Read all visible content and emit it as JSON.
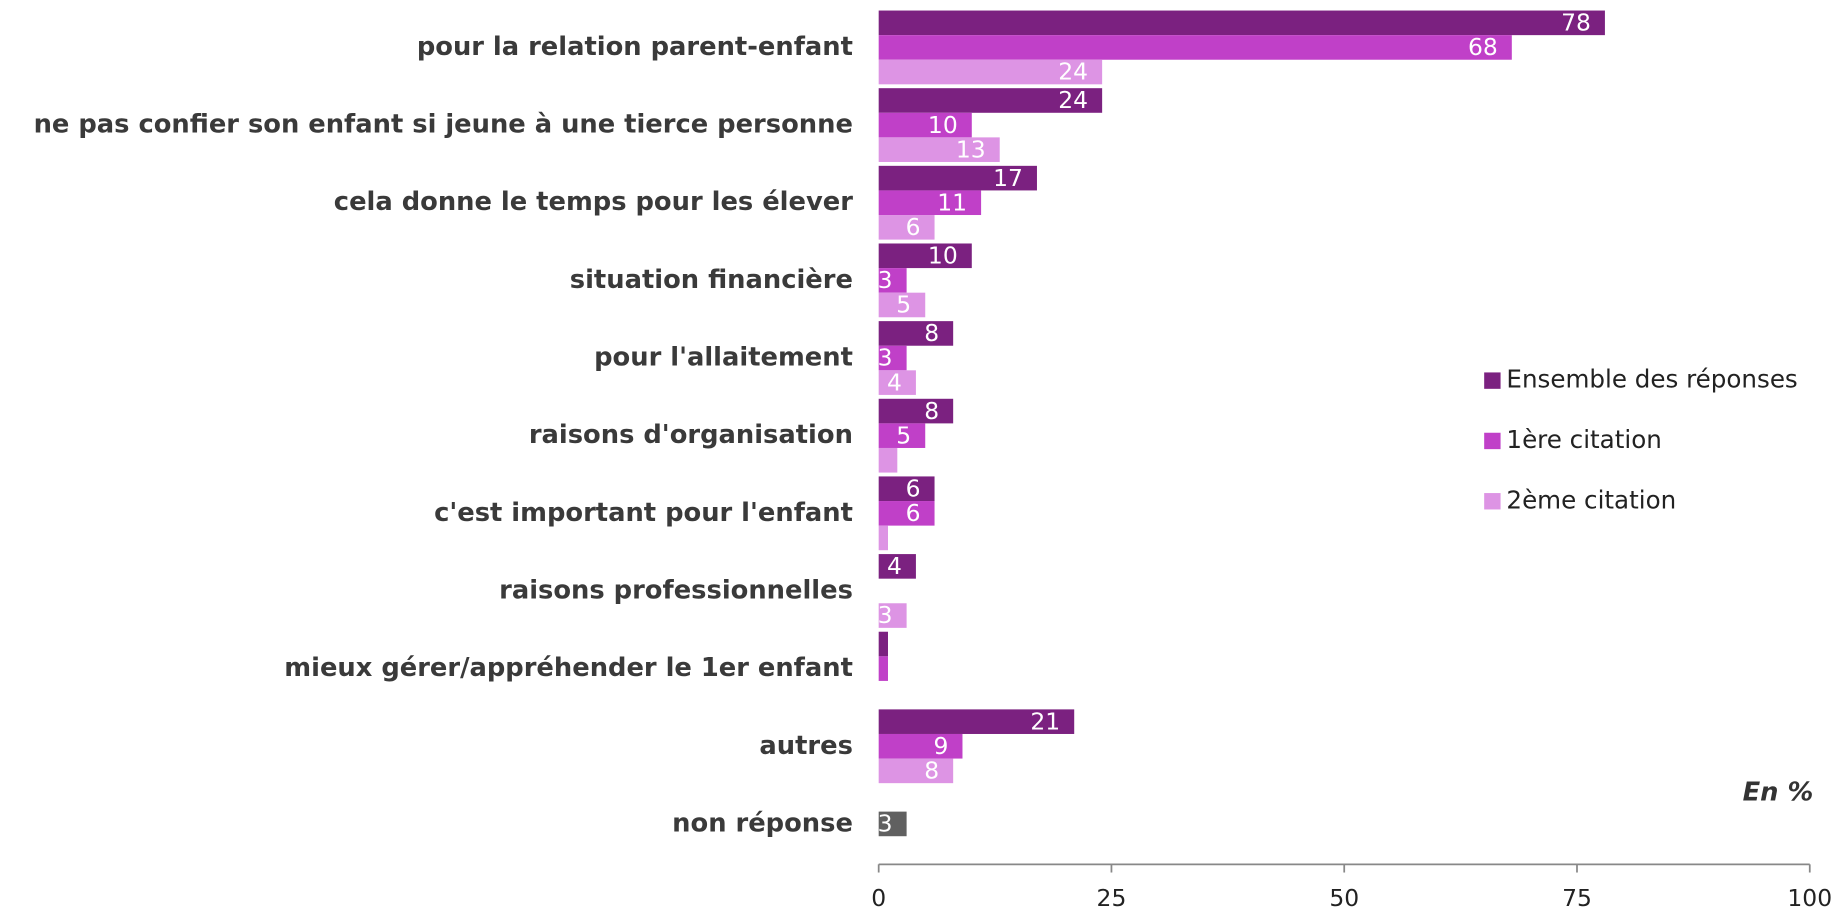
{
  "chart_data": {
    "type": "hbar",
    "categories": [
      "pour la relation parent-enfant",
      "ne pas confier son enfant si jeune à une tierce personne",
      "cela donne le temps pour les élever",
      "situation financière",
      "pour l'allaitement",
      "raisons d'organisation",
      "c'est important pour l'enfant",
      "raisons professionnelles",
      "mieux gérer/appréhender le 1er enfant",
      "autres",
      "non réponse"
    ],
    "series": [
      {
        "name": "Ensemble des réponses",
        "color": "#7b2180",
        "point_colors": {
          "10": "#606060"
        },
        "values": [
          78,
          24,
          17,
          10,
          8,
          8,
          6,
          4,
          1,
          21,
          3
        ],
        "value_labels": [
          "78",
          "24",
          "17",
          "10",
          "8",
          "8",
          "6",
          "4",
          null,
          "21",
          "3"
        ]
      },
      {
        "name": "1ère citation",
        "color": "#c040c8",
        "values": [
          68,
          10,
          11,
          3,
          3,
          5,
          6,
          null,
          1,
          9,
          null
        ],
        "value_labels": [
          "68",
          "10",
          "11",
          "3",
          "3",
          "5",
          "6",
          null,
          null,
          "9",
          null
        ]
      },
      {
        "name": "2ème citation",
        "color": "#dd94e4",
        "values": [
          24,
          13,
          6,
          5,
          4,
          2,
          1,
          3,
          null,
          8,
          null
        ],
        "value_labels": [
          "24",
          "13",
          "6",
          "5",
          "4",
          null,
          null,
          "3",
          null,
          "8",
          null
        ]
      }
    ],
    "xlim": [
      0,
      100
    ],
    "xticks": [
      0,
      25,
      50,
      75,
      100
    ],
    "annotation": "En %"
  }
}
